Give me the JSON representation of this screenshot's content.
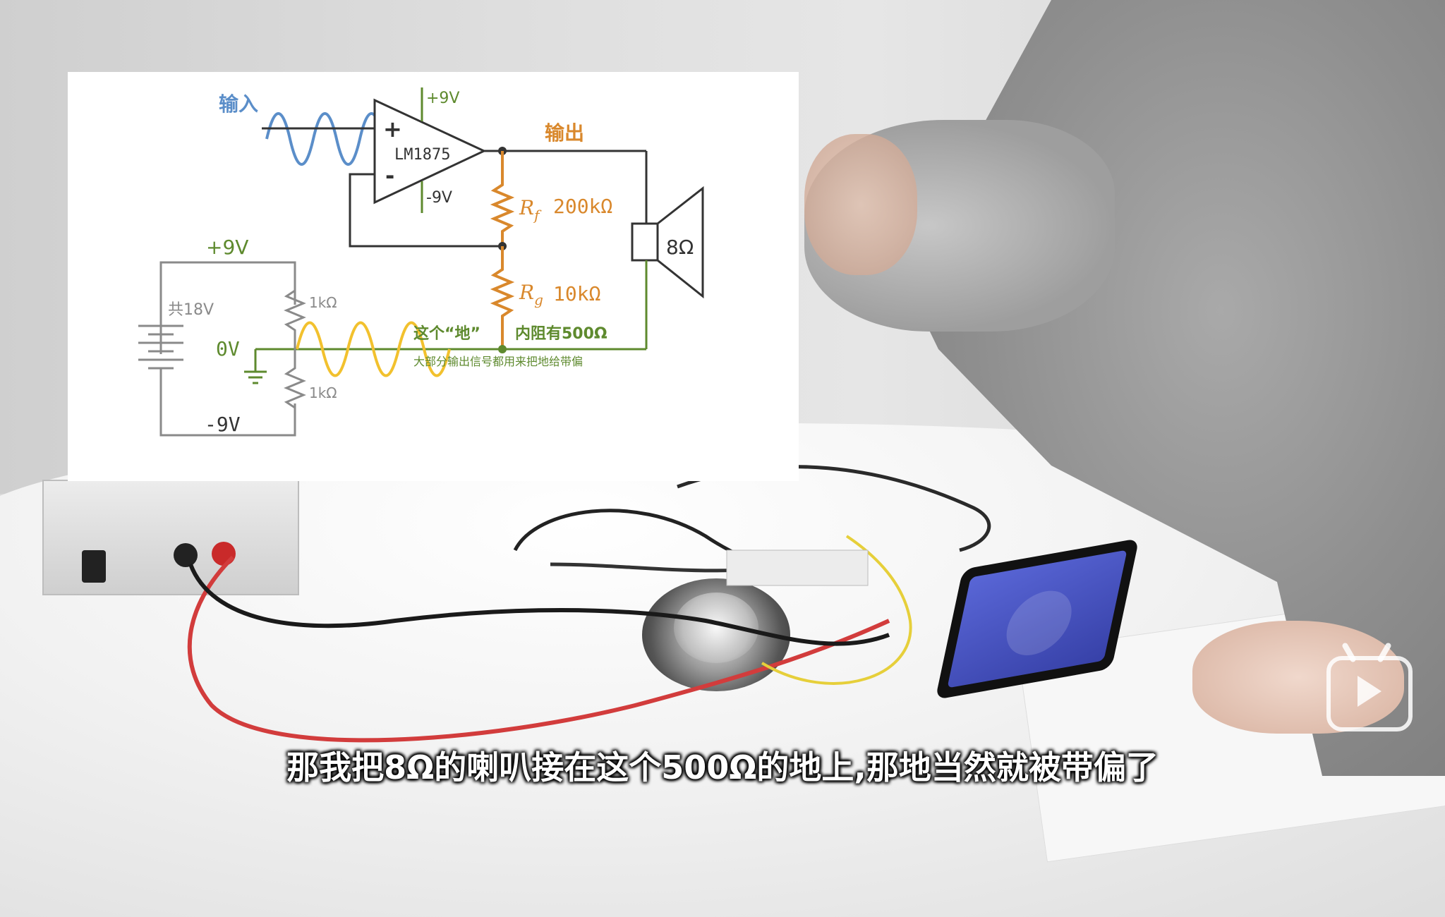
{
  "diagram": {
    "input_label": "输入",
    "output_label": "输出",
    "opamp_name": "LM1875",
    "plus_sign": "+",
    "minus_sign": "-",
    "vplus_top": "+9V",
    "vminus_opamp": "-9V",
    "rf_symbol": "R",
    "rf_sub": "f",
    "rf_value": "200kΩ",
    "rg_symbol": "R",
    "rg_sub": "g",
    "rg_value": "10kΩ",
    "speaker_impedance": "8Ω",
    "supply_pos": "+9V",
    "supply_neg": "-9V",
    "battery_total": "共18V",
    "divider_top": "1kΩ",
    "divider_bottom": "1kΩ",
    "ground_label": "0V",
    "ground_note": "这个“地”",
    "impedance_note": "内阻有500Ω",
    "bias_note": "大部分输出信号都用来把地给带偏",
    "colors": {
      "input_wave": "#5b8ec9",
      "output": "#d9882c",
      "supply": "#5e8a2e",
      "ground_wave": "#f2c12e",
      "wire": "#333333",
      "divider": "#8a8a8a"
    }
  },
  "subtitle": "那我把8Ω的喇叭接在这个500Ω的地上,那地当然就被带偏了",
  "logo_icon": "bilibili-tv-icon"
}
